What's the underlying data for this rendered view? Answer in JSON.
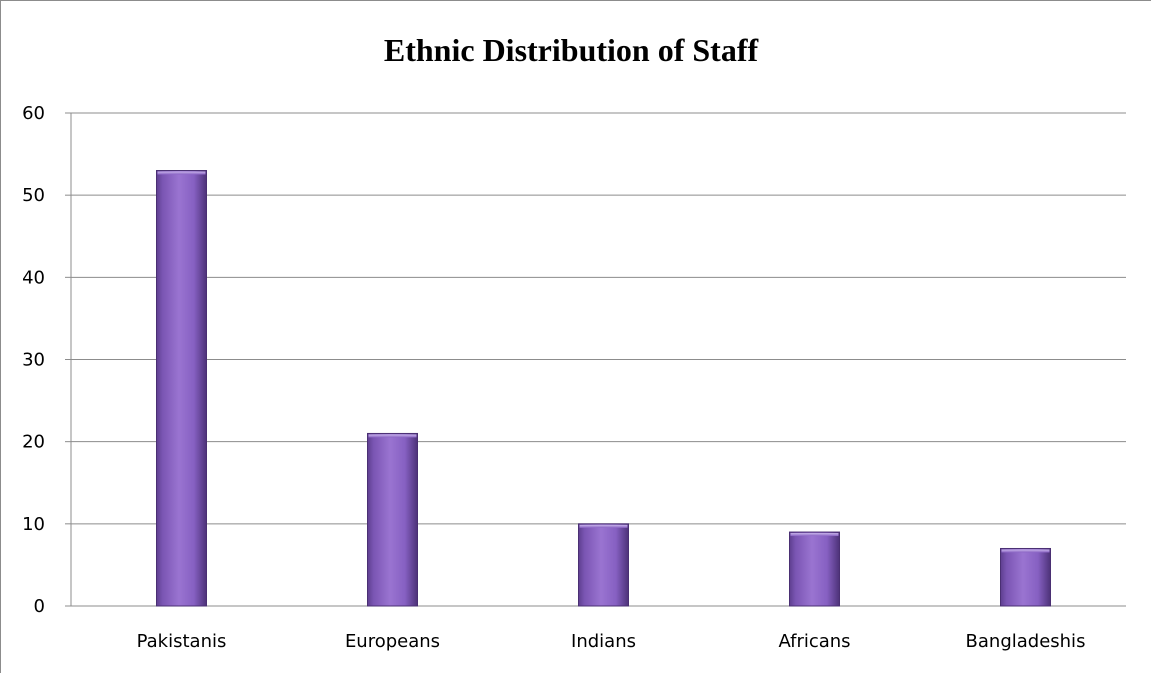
{
  "chart_data": {
    "type": "bar",
    "title": "Ethnic Distribution of Staff",
    "categories": [
      "Pakistanis",
      "Europeans",
      "Indians",
      "Africans",
      "Bangladeshis"
    ],
    "values": [
      53,
      21,
      10,
      9,
      7
    ],
    "ylim": [
      0,
      60
    ],
    "yticks": [
      0,
      10,
      20,
      30,
      40,
      50,
      60
    ],
    "xlabel": "",
    "ylabel": "",
    "grid": true,
    "legend": "none",
    "bar_color": "#8a63c4"
  }
}
